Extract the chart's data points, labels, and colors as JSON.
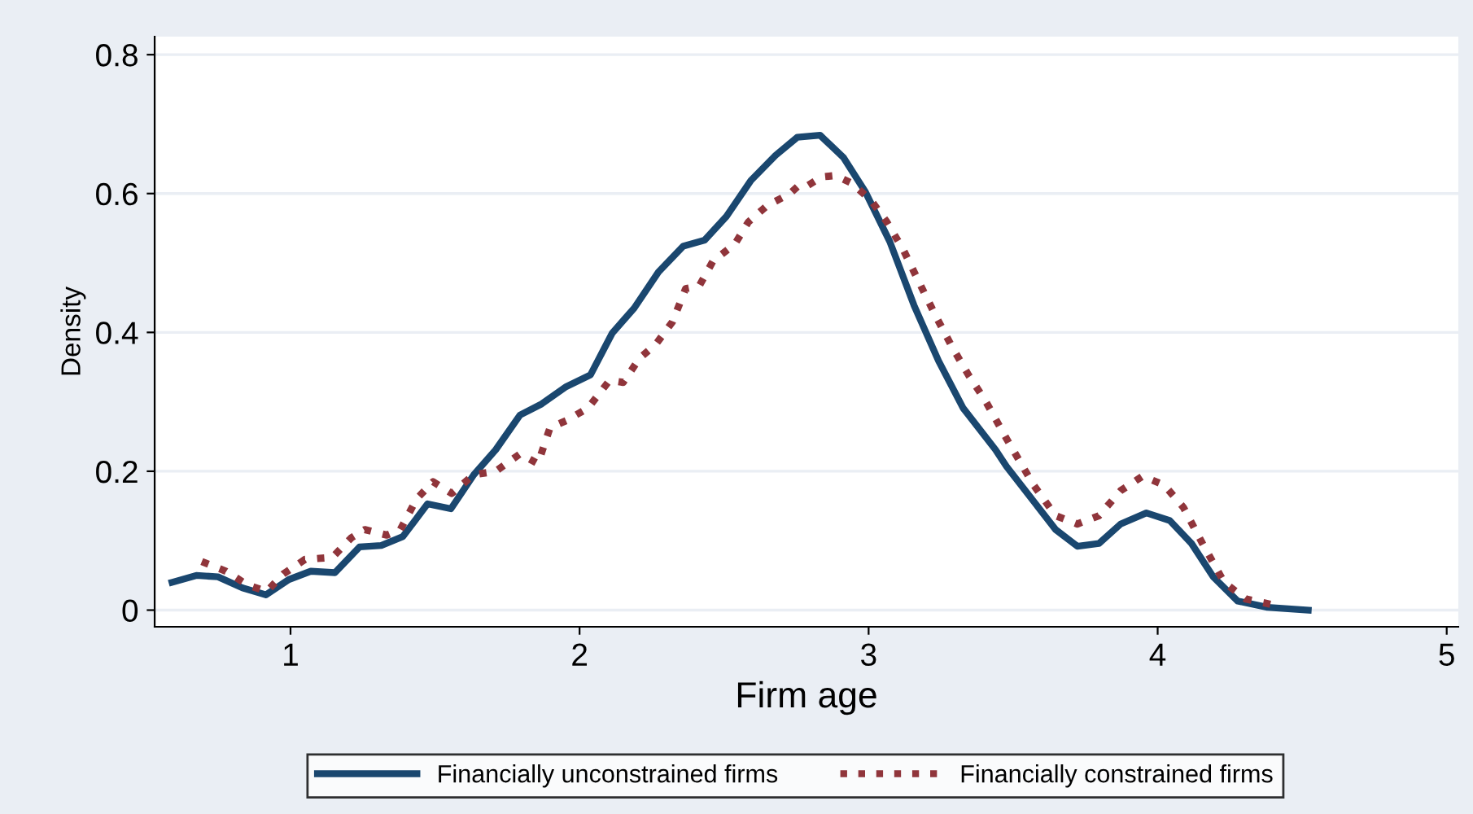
{
  "chart_data": {
    "type": "line",
    "xlabel": "Firm age",
    "ylabel": "Density",
    "xlim": [
      0.53,
      5.04
    ],
    "ylim": [
      -0.024,
      0.826
    ],
    "xticks": [
      1,
      2,
      3,
      4,
      5
    ],
    "yticks": [
      0,
      0.2,
      0.4,
      0.6,
      0.8
    ],
    "grid": "y",
    "legend": "bottom",
    "marker": "none",
    "series": [
      {
        "name": "Financially unconstrained firms",
        "color": "#1a476f",
        "line_style": "solid",
        "x": [
          0.59,
          0.674,
          0.749,
          0.834,
          0.915,
          0.994,
          1.07,
          1.154,
          1.239,
          1.314,
          1.389,
          1.474,
          1.555,
          1.634,
          1.71,
          1.794,
          1.869,
          1.954,
          2.038,
          2.113,
          2.189,
          2.273,
          2.358,
          2.433,
          2.508,
          2.593,
          2.678,
          2.753,
          2.832,
          2.913,
          2.988,
          3.073,
          3.157,
          3.242,
          3.327,
          3.439,
          3.477,
          3.647,
          3.722,
          3.797,
          3.872,
          3.961,
          4.042,
          4.117,
          4.192,
          4.277,
          4.38,
          4.521
        ],
        "values": [
          0.04,
          0.05,
          0.048,
          0.032,
          0.022,
          0.044,
          0.056,
          0.054,
          0.091,
          0.093,
          0.106,
          0.153,
          0.146,
          0.195,
          0.231,
          0.281,
          0.297,
          0.322,
          0.339,
          0.399,
          0.435,
          0.487,
          0.524,
          0.533,
          0.567,
          0.619,
          0.655,
          0.681,
          0.684,
          0.652,
          0.603,
          0.531,
          0.439,
          0.359,
          0.291,
          0.231,
          0.207,
          0.116,
          0.092,
          0.096,
          0.124,
          0.14,
          0.129,
          0.096,
          0.048,
          0.013,
          0.004,
          0.0
        ]
      },
      {
        "name": "Financially constrained firms",
        "color": "#90353b",
        "line_style": "dotted",
        "x": [
          0.693,
          0.777,
          0.852,
          0.918,
          0.975,
          1.05,
          1.145,
          1.21,
          1.257,
          1.333,
          1.38,
          1.436,
          1.493,
          1.558,
          1.634,
          1.71,
          1.794,
          1.856,
          1.898,
          1.954,
          2.029,
          2.104,
          2.151,
          2.208,
          2.264,
          2.321,
          2.367,
          2.414,
          2.462,
          2.537,
          2.584,
          2.65,
          2.725,
          2.762,
          2.791,
          2.838,
          2.885,
          2.941,
          3.007,
          3.063,
          3.12,
          3.176,
          3.233,
          3.289,
          3.345,
          3.402,
          3.477,
          3.571,
          3.647,
          3.722,
          3.797,
          3.872,
          3.948,
          4.023,
          4.089,
          4.155,
          4.23,
          4.305,
          4.418
        ],
        "values": [
          0.07,
          0.056,
          0.036,
          0.027,
          0.052,
          0.073,
          0.076,
          0.104,
          0.116,
          0.108,
          0.116,
          0.16,
          0.185,
          0.168,
          0.195,
          0.2,
          0.225,
          0.211,
          0.263,
          0.273,
          0.291,
          0.331,
          0.328,
          0.363,
          0.383,
          0.415,
          0.463,
          0.467,
          0.503,
          0.527,
          0.559,
          0.583,
          0.599,
          0.613,
          0.612,
          0.624,
          0.626,
          0.615,
          0.591,
          0.559,
          0.519,
          0.471,
          0.423,
          0.379,
          0.339,
          0.303,
          0.247,
          0.18,
          0.136,
          0.124,
          0.136,
          0.172,
          0.193,
          0.18,
          0.148,
          0.096,
          0.04,
          0.016,
          0.006
        ]
      }
    ]
  }
}
